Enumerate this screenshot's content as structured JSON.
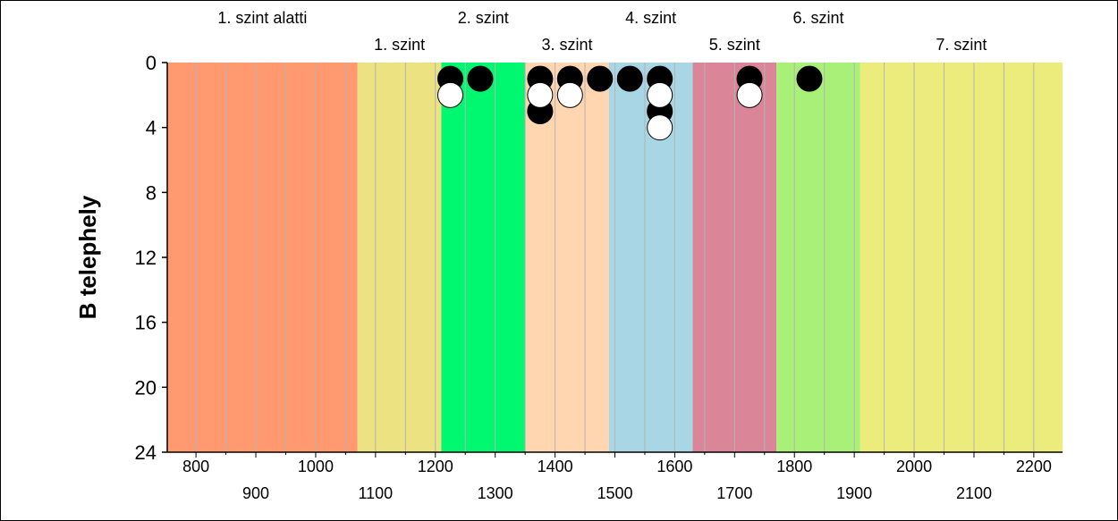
{
  "chart_data": {
    "type": "scatter",
    "title": "",
    "xlabel": "",
    "ylabel": "B telephely",
    "xlim": [
      752,
      2248
    ],
    "ylim": [
      24,
      0
    ],
    "y_ticks": [
      0,
      4,
      8,
      12,
      16,
      20,
      24
    ],
    "x_ticks_upper": [
      800,
      1000,
      1200,
      1400,
      1600,
      1800,
      2000,
      2200
    ],
    "x_ticks_lower": [
      900,
      1100,
      1300,
      1500,
      1700,
      1900,
      2100
    ],
    "grid": "vertical every 50",
    "bands": [
      {
        "label": "1. szint alatti",
        "from": 752,
        "to": 1070,
        "color": "#ff9a70"
      },
      {
        "label": "1. szint",
        "from": 1070,
        "to": 1210,
        "color": "#ece282"
      },
      {
        "label": "2. szint",
        "from": 1210,
        "to": 1350,
        "color": "#00f870"
      },
      {
        "label": "3. szint",
        "from": 1350,
        "to": 1490,
        "color": "#ffd6b0"
      },
      {
        "label": "4. szint",
        "from": 1490,
        "to": 1630,
        "color": "#a8d6e4"
      },
      {
        "label": "5. szint",
        "from": 1630,
        "to": 1770,
        "color": "#da8698"
      },
      {
        "label": "6. szint",
        "from": 1770,
        "to": 1910,
        "color": "#a8f078"
      },
      {
        "label": "7. szint",
        "from": 1910,
        "to": 2248,
        "color": "#ecec7c"
      }
    ],
    "series": [
      {
        "marker": "filled",
        "color": "#000000",
        "points": [
          {
            "x": 1225,
            "y": 1
          },
          {
            "x": 1275,
            "y": 1
          },
          {
            "x": 1375,
            "y": 1
          },
          {
            "x": 1375,
            "y": 3
          },
          {
            "x": 1425,
            "y": 1
          },
          {
            "x": 1475,
            "y": 1
          },
          {
            "x": 1525,
            "y": 1
          },
          {
            "x": 1575,
            "y": 1
          },
          {
            "x": 1575,
            "y": 3
          },
          {
            "x": 1725,
            "y": 1
          },
          {
            "x": 1825,
            "y": 1
          }
        ]
      },
      {
        "marker": "open",
        "color": "#ffffff",
        "points": [
          {
            "x": 1225,
            "y": 2
          },
          {
            "x": 1375,
            "y": 2
          },
          {
            "x": 1425,
            "y": 2
          },
          {
            "x": 1575,
            "y": 2
          },
          {
            "x": 1575,
            "y": 4
          },
          {
            "x": 1725,
            "y": 2
          }
        ]
      }
    ]
  }
}
